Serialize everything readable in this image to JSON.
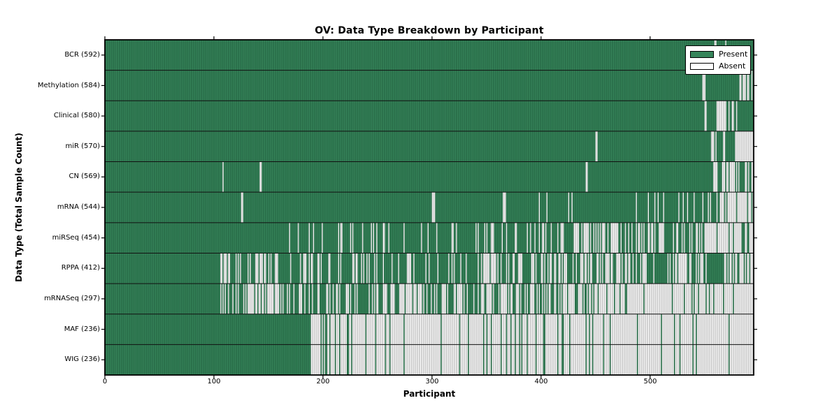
{
  "title": "OV: Data Type Breakdown by Participant",
  "xlabel": "Participant",
  "ylabel": "Data Type (Total Sample Count)",
  "legend": {
    "present_label": "Present",
    "absent_label": "Absent"
  },
  "colors": {
    "present": "#37855B",
    "present_edge": "#1D5B3A",
    "absent": "#FFFFFF",
    "absent_edge": "#9E9E9E",
    "separator": "#111111",
    "border": "#000000"
  },
  "chart_data": {
    "type": "heatmap",
    "title": "OV: Data Type Breakdown by Participant",
    "xlabel": "Participant",
    "ylabel": "Data Type (Total Sample Count)",
    "legend_entries": [
      "Present",
      "Absent"
    ],
    "legend_position": "upper right",
    "grid": false,
    "x_ticks": [
      0,
      100,
      200,
      300,
      400,
      500
    ],
    "xlim": [
      0,
      595
    ],
    "n_participants": 595,
    "cell_states": [
      "present",
      "absent"
    ],
    "rows": [
      {
        "label": "BCR",
        "count": 592,
        "display": "BCR (592)",
        "seed": 3,
        "segments": [
          [
            0,
            558,
            1
          ],
          [
            558,
            562,
            0.5
          ],
          [
            562,
            567,
            1
          ],
          [
            567,
            570,
            0.5
          ],
          [
            570,
            576,
            0.7
          ],
          [
            576,
            595,
            1
          ]
        ]
      },
      {
        "label": "Methylation",
        "count": 584,
        "display": "Methylation (584)",
        "seed": 5,
        "segments": [
          [
            0,
            548,
            1
          ],
          [
            548,
            551,
            0.3
          ],
          [
            551,
            582,
            1
          ],
          [
            582,
            595,
            0.12
          ]
        ]
      },
      {
        "label": "Clinical",
        "count": 580,
        "display": "Clinical (580)",
        "seed": 7,
        "segments": [
          [
            0,
            549,
            1
          ],
          [
            549,
            552,
            0.2
          ],
          [
            552,
            558,
            1
          ],
          [
            558,
            580,
            0.45
          ],
          [
            580,
            595,
            1
          ]
        ]
      },
      {
        "label": "miR",
        "count": 570,
        "display": "miR (570)",
        "seed": 11,
        "segments": [
          [
            0,
            450,
            1
          ],
          [
            450,
            452,
            0.4
          ],
          [
            452,
            556,
            1
          ],
          [
            556,
            561,
            0.3
          ],
          [
            561,
            567,
            1
          ],
          [
            567,
            570,
            0.3
          ],
          [
            570,
            577,
            1
          ],
          [
            577,
            595,
            0.06
          ]
        ]
      },
      {
        "label": "CN",
        "count": 569,
        "display": "CN (569)",
        "seed": 13,
        "segments": [
          [
            0,
            107,
            1
          ],
          [
            107,
            109,
            0.2
          ],
          [
            109,
            142,
            1
          ],
          [
            142,
            144,
            0.2
          ],
          [
            144,
            440,
            1
          ],
          [
            440,
            443,
            0.3
          ],
          [
            443,
            558,
            1
          ],
          [
            558,
            562,
            0.3
          ],
          [
            562,
            566,
            1
          ],
          [
            566,
            570,
            0.3
          ],
          [
            570,
            583,
            0.05
          ],
          [
            583,
            587,
            0.9
          ],
          [
            587,
            595,
            0.05
          ]
        ]
      },
      {
        "label": "mRNA",
        "count": 544,
        "display": "mRNA (544)",
        "seed": 17,
        "segments": [
          [
            0,
            125,
            1
          ],
          [
            125,
            127,
            0.3
          ],
          [
            127,
            300,
            1
          ],
          [
            300,
            304,
            0.4
          ],
          [
            304,
            365,
            1
          ],
          [
            365,
            368,
            0.4
          ],
          [
            368,
            398,
            1
          ],
          [
            398,
            402,
            0.4
          ],
          [
            402,
            497,
            0.99
          ],
          [
            497,
            510,
            0.75
          ],
          [
            510,
            548,
            0.96
          ],
          [
            548,
            556,
            0.4
          ],
          [
            556,
            566,
            0.75
          ],
          [
            566,
            580,
            0.55
          ],
          [
            580,
            595,
            0.05
          ]
        ]
      },
      {
        "label": "miRSeq",
        "count": 454,
        "display": "miRSeq (454)",
        "seed": 19,
        "segments": [
          [
            0,
            169,
            1
          ],
          [
            169,
            230,
            0.75
          ],
          [
            230,
            340,
            0.88
          ],
          [
            340,
            430,
            0.78
          ],
          [
            430,
            520,
            0.5
          ],
          [
            520,
            545,
            0.7
          ],
          [
            545,
            595,
            0.25
          ]
        ]
      },
      {
        "label": "RPPA",
        "count": 412,
        "display": "RPPA (412)",
        "seed": 23,
        "segments": [
          [
            0,
            106,
            1
          ],
          [
            106,
            160,
            0.55
          ],
          [
            160,
            200,
            0.65
          ],
          [
            200,
            340,
            0.78
          ],
          [
            340,
            420,
            0.55
          ],
          [
            420,
            497,
            0.6
          ],
          [
            497,
            516,
            0.95
          ],
          [
            516,
            556,
            0.45
          ],
          [
            556,
            573,
            0.8
          ],
          [
            573,
            595,
            0.3
          ]
        ]
      },
      {
        "label": "mRNASeq",
        "count": 297,
        "display": "mRNASeq (297)",
        "seed": 29,
        "segments": [
          [
            0,
            106,
            1
          ],
          [
            106,
            160,
            0.45
          ],
          [
            160,
            255,
            0.68
          ],
          [
            255,
            340,
            0.52
          ],
          [
            340,
            420,
            0.48
          ],
          [
            420,
            465,
            0.3
          ],
          [
            465,
            520,
            0.15
          ],
          [
            520,
            560,
            0.25
          ],
          [
            560,
            595,
            0.08
          ]
        ]
      },
      {
        "label": "MAF",
        "count": 236,
        "display": "MAF (236)",
        "seed": 31,
        "segments": [
          [
            0,
            189,
            1
          ],
          [
            189,
            240,
            0.2
          ],
          [
            240,
            330,
            0.12
          ],
          [
            330,
            420,
            0.1
          ],
          [
            420,
            520,
            0.08
          ],
          [
            520,
            595,
            0.06
          ]
        ]
      },
      {
        "label": "WIG",
        "count": 236,
        "display": "WIG (236)",
        "seed": 31,
        "segments": [
          [
            0,
            189,
            1
          ],
          [
            189,
            240,
            0.2
          ],
          [
            240,
            330,
            0.12
          ],
          [
            330,
            420,
            0.1
          ],
          [
            420,
            520,
            0.08
          ],
          [
            520,
            595,
            0.06
          ]
        ]
      }
    ]
  }
}
